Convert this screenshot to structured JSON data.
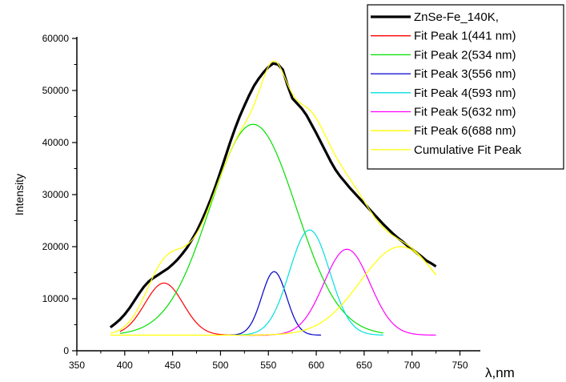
{
  "chart_data": {
    "type": "line",
    "xlabel": "λ,nm",
    "ylabel": "Intensity",
    "xlim": [
      350,
      780
    ],
    "ylim": [
      0,
      62000
    ],
    "xticks": [
      350,
      400,
      450,
      500,
      550,
      600,
      650,
      700,
      750
    ],
    "yticks": [
      0,
      10000,
      20000,
      30000,
      40000,
      50000,
      60000
    ],
    "grid": false,
    "legend_position": "top-right",
    "baseline": 3000,
    "series": [
      {
        "name": "ZnSe-Fe_140K,",
        "color": "#000000",
        "role": "data",
        "x": [
          385,
          390,
          395,
          400,
          405,
          410,
          415,
          420,
          425,
          430,
          435,
          440,
          445,
          450,
          455,
          460,
          465,
          470,
          475,
          480,
          485,
          490,
          495,
          500,
          505,
          510,
          515,
          520,
          525,
          530,
          535,
          540,
          545,
          550,
          555,
          560,
          565,
          570,
          575,
          580,
          585,
          590,
          595,
          600,
          605,
          610,
          615,
          620,
          625,
          630,
          635,
          640,
          645,
          650,
          655,
          660,
          665,
          670,
          675,
          680,
          685,
          690,
          695,
          700,
          705,
          710,
          715,
          720,
          725
        ],
        "y": [
          4500,
          5200,
          6000,
          7000,
          8200,
          9600,
          11000,
          12300,
          13300,
          14000,
          14600,
          15200,
          15800,
          16600,
          17500,
          18600,
          19800,
          21300,
          22900,
          24800,
          26900,
          29200,
          31700,
          34400,
          37200,
          40000,
          42600,
          45000,
          47100,
          49100,
          50900,
          52300,
          53500,
          54500,
          55200,
          55000,
          54000,
          51000,
          48500,
          47500,
          46500,
          45200,
          43500,
          41800,
          40000,
          38200,
          36400,
          34800,
          33500,
          32400,
          31300,
          30300,
          29300,
          28300,
          27300,
          26300,
          25300,
          24300,
          23400,
          22500,
          21700,
          21000,
          20200,
          19500,
          18800,
          18100,
          17300,
          16800,
          16200
        ]
      },
      {
        "name": "Fit Peak 1(441 nm)",
        "color": "#ff0000",
        "role": "peak",
        "center": 441,
        "amplitude": 10000,
        "sigma": 20,
        "range": [
          395,
          550
        ]
      },
      {
        "name": "Fit Peak 2(534 nm)",
        "color": "#00e000",
        "role": "peak",
        "center": 534,
        "amplitude": 40500,
        "sigma": 45,
        "range": [
          395,
          670
        ]
      },
      {
        "name": "Fit Peak 3(556 nm)",
        "color": "#0000cc",
        "role": "peak",
        "center": 556,
        "amplitude": 12200,
        "sigma": 13,
        "range": [
          510,
          605
        ]
      },
      {
        "name": "Fit Peak 4(593 nm)",
        "color": "#00e0e0",
        "role": "peak",
        "center": 593,
        "amplitude": 20200,
        "sigma": 21,
        "range": [
          520,
          670
        ]
      },
      {
        "name": "Fit Peak 5(632 nm)",
        "color": "#ff00ff",
        "role": "peak",
        "center": 632,
        "amplitude": 16500,
        "sigma": 24,
        "range": [
          530,
          725
        ]
      },
      {
        "name": "Fit Peak 6(688 nm)",
        "color": "#ffff00",
        "role": "peak",
        "center": 688,
        "amplitude": 17000,
        "sigma": 42,
        "range": [
          385,
          725
        ]
      },
      {
        "name": "Cumulative Fit Peak",
        "color": "#ffff00",
        "role": "cumulative",
        "range": [
          385,
          725
        ]
      }
    ]
  }
}
